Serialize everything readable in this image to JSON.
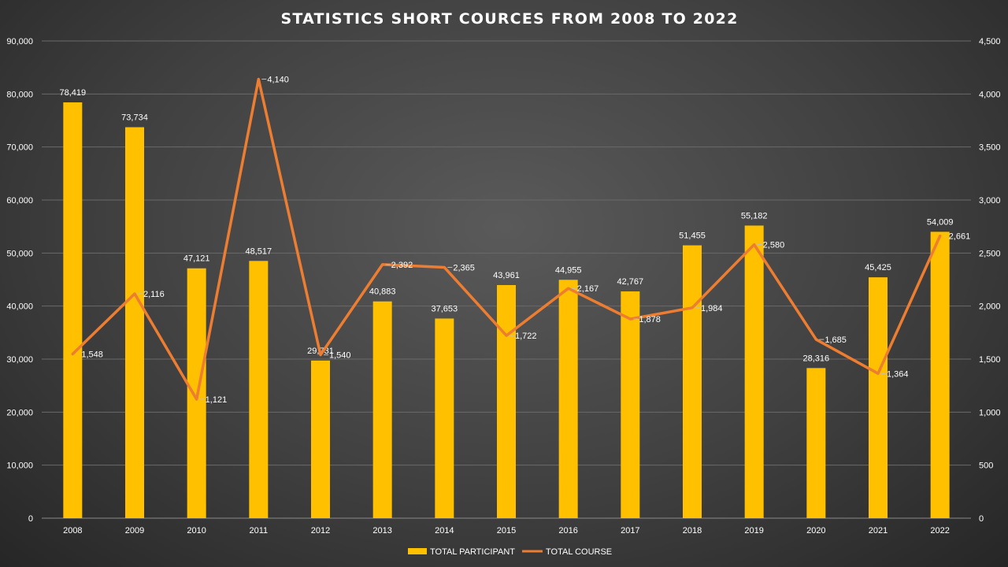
{
  "chart_data": {
    "type": "bar",
    "title": "STATISTICS SHORT COURCES FROM 2008 TO 2022",
    "categories": [
      "2008",
      "2009",
      "2010",
      "2011",
      "2012",
      "2013",
      "2014",
      "2015",
      "2016",
      "2017",
      "2018",
      "2019",
      "2020",
      "2021",
      "2022"
    ],
    "series": [
      {
        "name": "TOTAL PARTICIPANT",
        "type": "bar",
        "axis": "left",
        "color": "#FFC000",
        "values": [
          78419,
          73734,
          47121,
          48517,
          29731,
          40883,
          37653,
          43961,
          44955,
          42767,
          51455,
          55182,
          28316,
          45425,
          54009
        ],
        "labels": [
          "78,419",
          "73,734",
          "47,121",
          "48,517",
          "29,731",
          "40,883",
          "37,653",
          "43,961",
          "44,955",
          "42,767",
          "51,455",
          "55,182",
          "28,316",
          "45,425",
          "54,009"
        ]
      },
      {
        "name": "TOTAL COURSE",
        "type": "line",
        "axis": "right",
        "color": "#ED7D31",
        "values": [
          1548,
          2116,
          1121,
          4140,
          1540,
          2392,
          2365,
          1722,
          2167,
          1878,
          1984,
          2580,
          1685,
          1364,
          2661
        ],
        "labels": [
          "1,548",
          "2,116",
          "1,121",
          "4,140",
          "1,540",
          "2,392",
          "2,365",
          "1,722",
          "2,167",
          "1,878",
          "1,984",
          "2,580",
          "1,685",
          "1,364",
          "2,661"
        ]
      }
    ],
    "y_left": {
      "ylim": [
        0,
        90000
      ],
      "ticks": [
        0,
        10000,
        20000,
        30000,
        40000,
        50000,
        60000,
        70000,
        80000,
        90000
      ],
      "tick_labels": [
        "0",
        "10,000",
        "20,000",
        "30,000",
        "40,000",
        "50,000",
        "60,000",
        "70,000",
        "80,000",
        "90,000"
      ]
    },
    "y_right": {
      "ylim": [
        0,
        4500
      ],
      "ticks": [
        0,
        500,
        1000,
        1500,
        2000,
        2500,
        3000,
        3500,
        4000,
        4500
      ],
      "tick_labels": [
        "0",
        "500",
        "1,000",
        "1,500",
        "2,000",
        "2,500",
        "3,000",
        "3,500",
        "4,000",
        "4,500"
      ]
    },
    "grid": true,
    "legend": "bottom"
  }
}
